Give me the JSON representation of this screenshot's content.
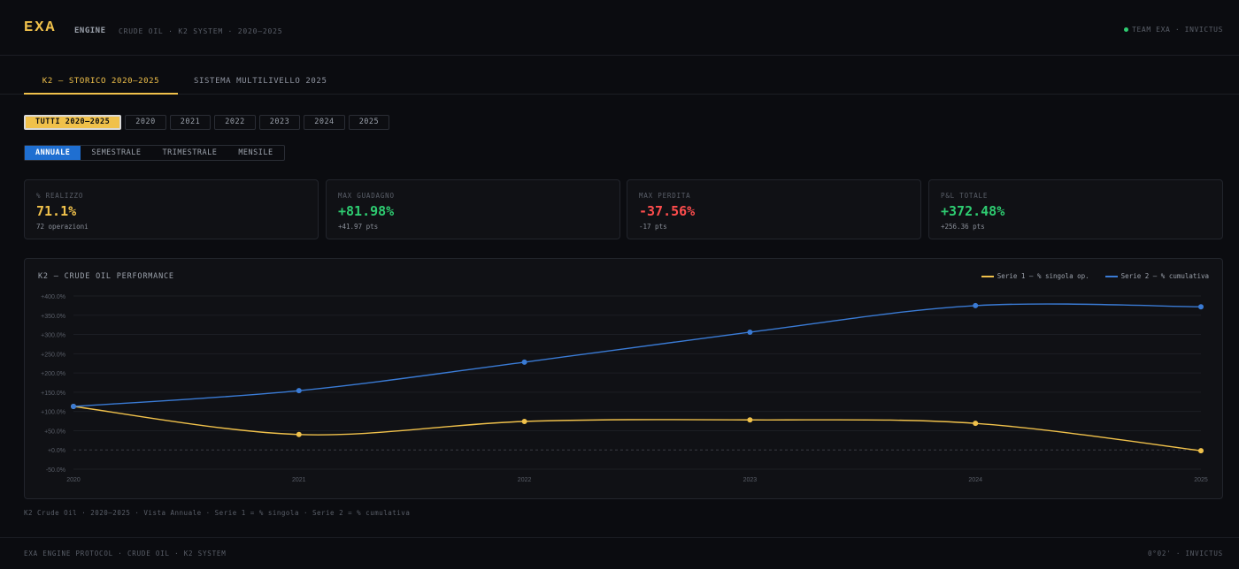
{
  "header": {
    "logo": "EXA",
    "engine": "ENGINE",
    "subtitle": "CRUDE OIL · K2 SYSTEM · 2020–2025",
    "team": "TEAM EXA · INVICTUS"
  },
  "tabs": [
    {
      "label": "K2 — STORICO 2020–2025",
      "active": true
    },
    {
      "label": "SISTEMA MULTILIVELLO 2025",
      "active": false
    }
  ],
  "year_filters": [
    "TUTTI 2020–2025",
    "2020",
    "2021",
    "2022",
    "2023",
    "2024",
    "2025"
  ],
  "year_selected": "TUTTI 2020–2025",
  "period_filters": [
    "ANNUALE",
    "SEMESTRALE",
    "TRIMESTRALE",
    "MENSILE"
  ],
  "period_selected": "ANNUALE",
  "cards": [
    {
      "label": "% REALIZZO",
      "value": "71.1%",
      "sub": "72 operazioni",
      "color": "#f0c14b"
    },
    {
      "label": "MAX GUADAGNO",
      "value": "+81.98%",
      "sub": "+41.97 pts",
      "color": "#2ecc71"
    },
    {
      "label": "MAX PERDITA",
      "value": "-37.56%",
      "sub": "-17 pts",
      "color": "#ff4d4d"
    },
    {
      "label": "P&L TOTALE",
      "value": "+372.48%",
      "sub": "+256.36 pts",
      "color": "#2ecc71"
    }
  ],
  "chart_title": "K2 — CRUDE OIL PERFORMANCE",
  "chart_data": {
    "type": "line",
    "x": [
      "2020",
      "2021",
      "2022",
      "2023",
      "2024",
      "2025"
    ],
    "series": [
      {
        "name": "Serie 1 — % singola op.",
        "color": "#f0c14b",
        "values": [
          113,
          40,
          74,
          78,
          69,
          -2
        ]
      },
      {
        "name": "Serie 2 — % cumulativa",
        "color": "#3a7bd5",
        "values": [
          113,
          154,
          228,
          306,
          375,
          372
        ]
      }
    ],
    "yticks": [
      "+400.0%",
      "+350.0%",
      "+300.0%",
      "+250.0%",
      "+200.0%",
      "+150.0%",
      "+100.0%",
      "+50.0%",
      "+0.0%",
      "-50.0%"
    ],
    "ylim": [
      -50,
      400
    ],
    "grid": true,
    "legend": "top-right"
  },
  "note": "K2 Crude Oil · 2020–2025 · Vista Annuale · Serie 1 = % singola · Serie 2 = % cumulativa",
  "footer": {
    "left": "EXA ENGINE PROTOCOL · CRUDE OIL · K2 SYSTEM",
    "right": "0°02' · INVICTUS"
  }
}
